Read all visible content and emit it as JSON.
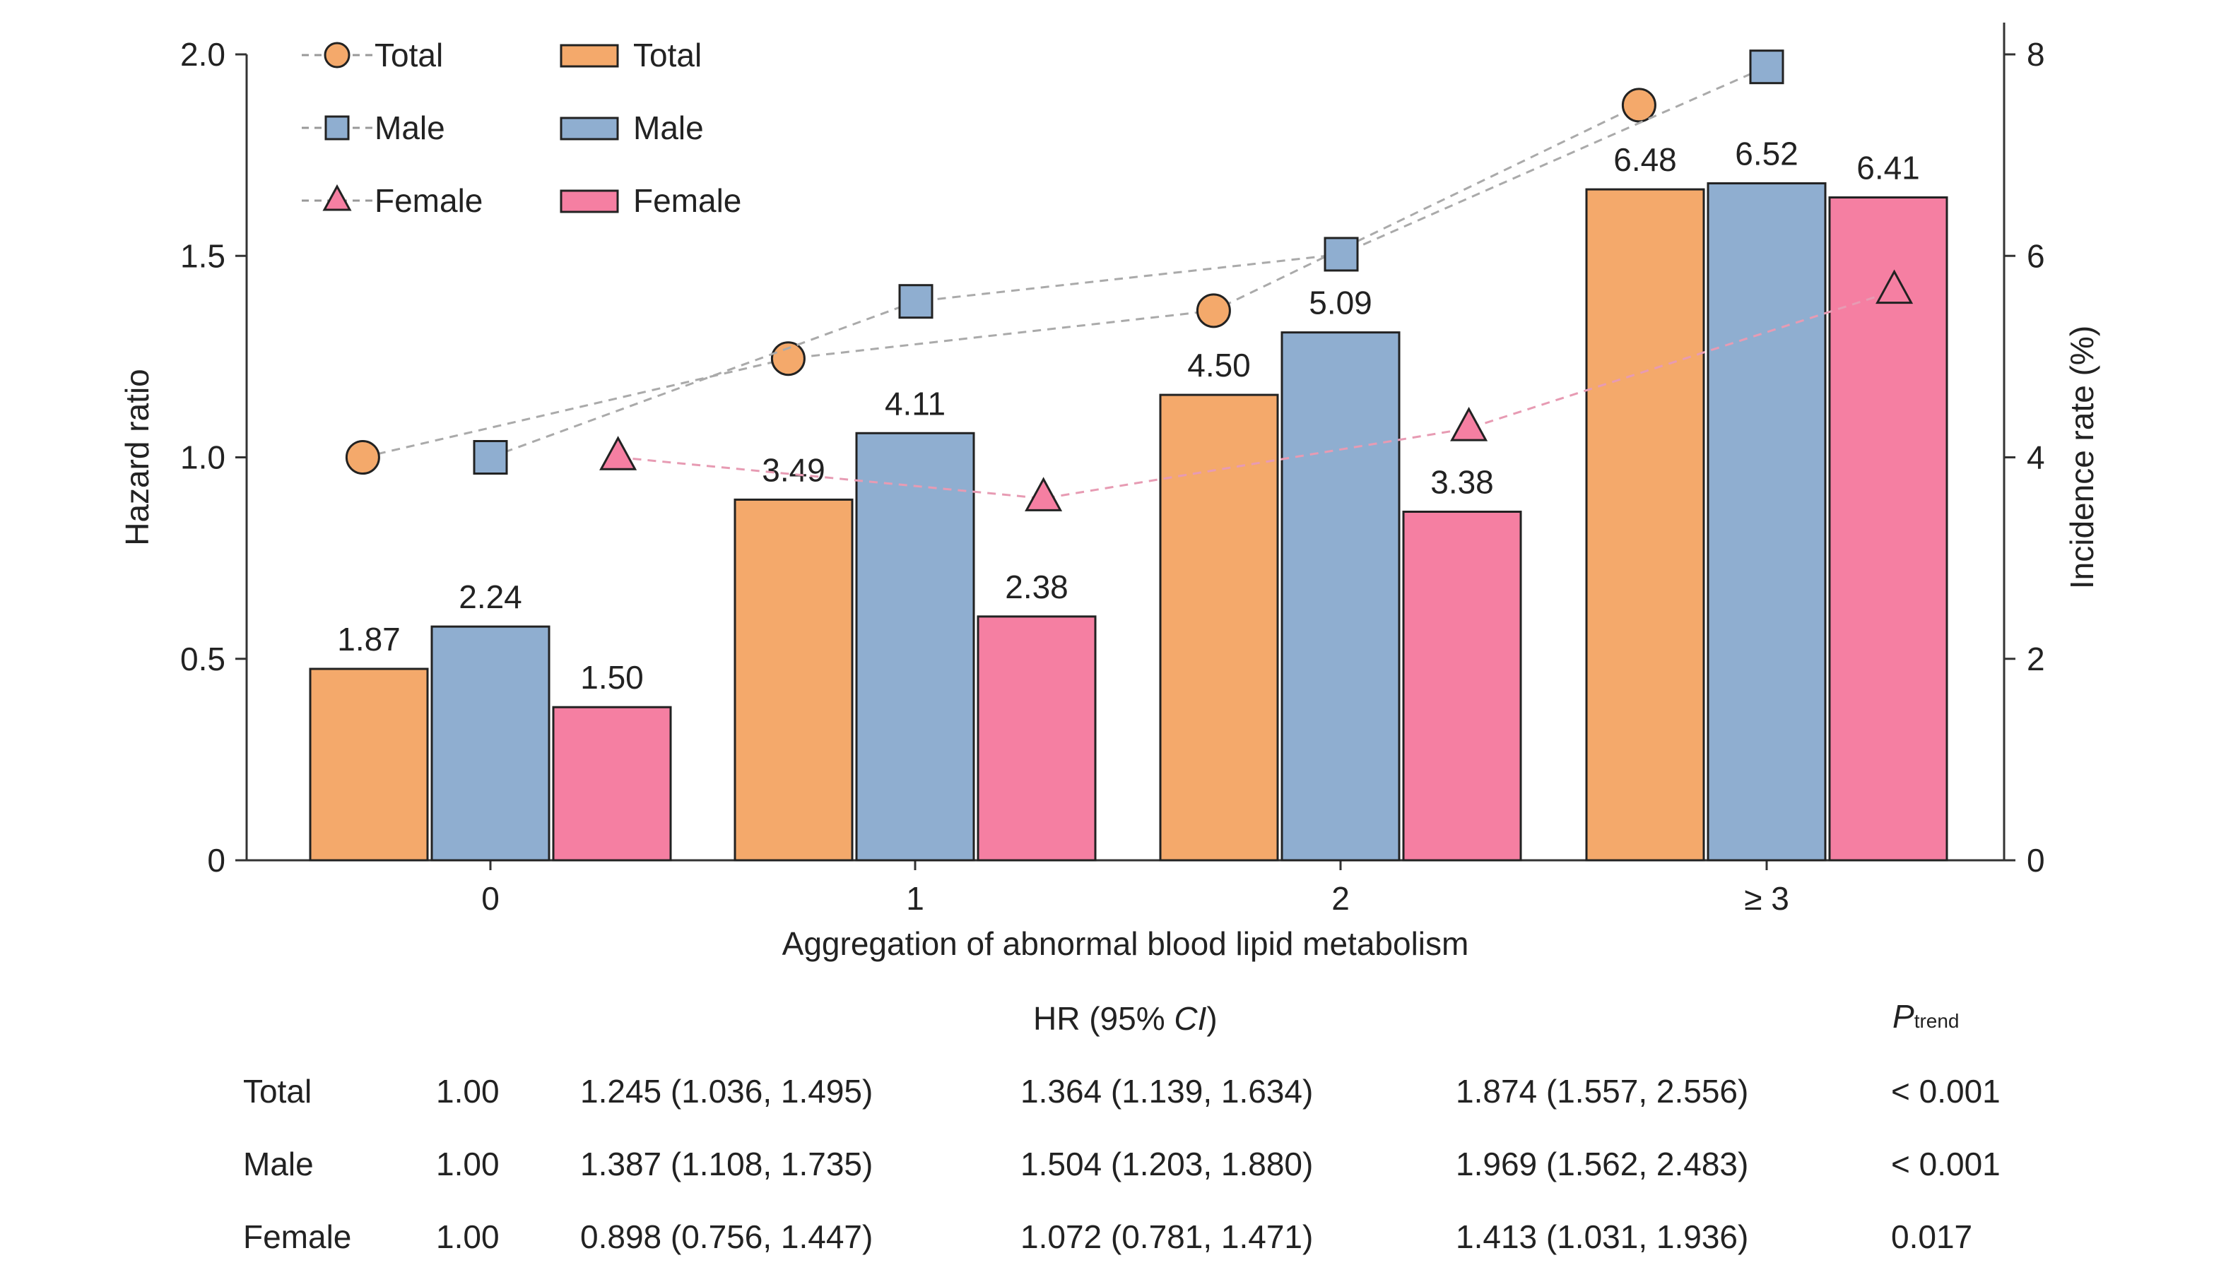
{
  "chart_data": {
    "type": "bar",
    "xlabel": "Aggregation of abnormal blood lipid metabolism",
    "ylabel": "Hazard ratio",
    "y2label": "Incidence rate (%)",
    "categories": [
      "0",
      "1",
      "2",
      "≥ 3"
    ],
    "ylim": [
      0,
      2.0
    ],
    "yticks": [
      "0",
      "0.5",
      "1.0",
      "1.5",
      "2.0"
    ],
    "y2lim": [
      0,
      8
    ],
    "y2ticks": [
      "0",
      "2",
      "4",
      "6",
      "8"
    ],
    "bar_series": [
      {
        "name": "Total",
        "color": "#F4A96B",
        "values": [
          0.475,
          0.895,
          1.155,
          1.665
        ],
        "labels": [
          "1.87",
          "3.49",
          "4.50",
          "6.48"
        ]
      },
      {
        "name": "Male",
        "color": "#8FAED0",
        "values": [
          0.58,
          1.06,
          1.31,
          1.68
        ],
        "labels": [
          "2.24",
          "4.11",
          "5.09",
          "6.52"
        ]
      },
      {
        "name": "Female",
        "color": "#F57FA2",
        "values": [
          0.38,
          0.605,
          0.865,
          1.645
        ],
        "labels": [
          "1.50",
          "2.38",
          "3.38",
          "6.41"
        ]
      }
    ],
    "line_series": [
      {
        "name": "Total",
        "marker": "circle",
        "color": "#F4A96B",
        "x": [
          -0.3,
          0.7,
          1.7,
          2.7
        ],
        "values": [
          1.0,
          1.245,
          1.364,
          1.874
        ]
      },
      {
        "name": "Male",
        "marker": "square",
        "color": "#8FAED0",
        "x": [
          0.0,
          1.0,
          2.0,
          3.0
        ],
        "values": [
          1.0,
          1.387,
          1.504,
          1.969
        ]
      },
      {
        "name": "Female",
        "marker": "triangle",
        "color": "#F57FA2",
        "x": [
          0.3,
          1.3,
          2.3,
          3.3
        ],
        "values": [
          1.0,
          0.898,
          1.072,
          1.413
        ]
      }
    ],
    "legend_position": "top-left",
    "grid": false
  },
  "table": {
    "header": "HR (95% CI)",
    "header_prefix": "HR (95% ",
    "header_italic": "CI",
    "header_suffix": ")",
    "ptrend_main": "P",
    "ptrend_sub": "trend",
    "rows": [
      {
        "label": "Total",
        "c0": "1.00",
        "c1": "1.245 (1.036, 1.495)",
        "c2": "1.364 (1.139, 1.634)",
        "c3": "1.874 (1.557, 2.556)",
        "p": "< 0.001"
      },
      {
        "label": "Male",
        "c0": "1.00",
        "c1": "1.387 (1.108, 1.735)",
        "c2": "1.504 (1.203, 1.880)",
        "c3": "1.969 (1.562, 2.483)",
        "p": "< 0.001"
      },
      {
        "label": "Female",
        "c0": "1.00",
        "c1": "0.898 (0.756, 1.447)",
        "c2": "1.072 (0.781, 1.471)",
        "c3": "1.413 (1.031, 1.936)",
        "p": "0.017"
      }
    ]
  }
}
